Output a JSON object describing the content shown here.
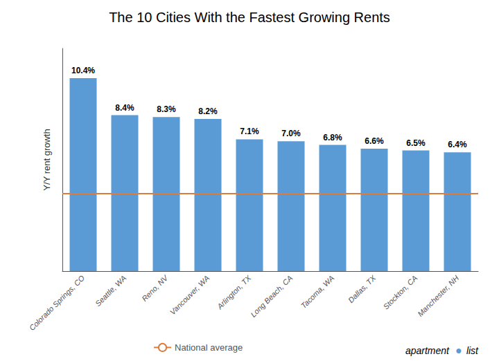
{
  "chart_data": {
    "type": "bar",
    "title": "The 10 Cities With the Fastest Growing Rents",
    "categories": [
      "Colorado Springs, CO",
      "Seattle, WA",
      "Reno, NV",
      "Vancouver, WA",
      "Arlington, TX",
      "Long Beach, CA",
      "Tacoma, WA",
      "Dallas, TX",
      "Stockton, CA",
      "Manchester, NH"
    ],
    "values": [
      10.4,
      8.4,
      8.3,
      8.2,
      7.1,
      7.0,
      6.8,
      6.6,
      6.5,
      6.4
    ],
    "value_labels": [
      "10.4%",
      "8.4%",
      "8.3%",
      "8.2%",
      "7.1%",
      "7.0%",
      "6.8%",
      "6.6%",
      "6.5%",
      "6.4%"
    ],
    "data_labels": true,
    "color": "#5b9bd5",
    "ylabel": "Y/Y rent growth",
    "ylim": [
      0,
      12
    ],
    "yticks": [],
    "tick_labels": "x",
    "grid": false,
    "reference_line": {
      "name": "National average",
      "value": 4.2,
      "color": "#e07b39"
    },
    "legend": "bottom",
    "annotations": [
      "apartment",
      "●",
      "list"
    ]
  }
}
